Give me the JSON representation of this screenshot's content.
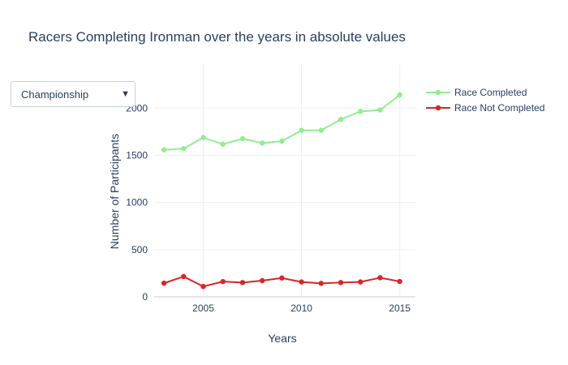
{
  "dropdown": {
    "selected": "Championship",
    "arrow_icon": "caret-down-icon"
  },
  "chart_data": {
    "type": "line",
    "title": "Racers Completing Ironman over the years in absolute values",
    "xlabel": "Years",
    "ylabel": "Number of Participants",
    "x": [
      2003,
      2004,
      2005,
      2006,
      2007,
      2008,
      2009,
      2010,
      2011,
      2012,
      2013,
      2014,
      2015
    ],
    "xlim": [
      2002.5,
      2015.8
    ],
    "ylim": [
      0,
      2200
    ],
    "x_ticks": [
      2005,
      2010,
      2015
    ],
    "y_ticks": [
      0,
      500,
      1000,
      1500,
      2000
    ],
    "grid": true,
    "legend_position": "top-right",
    "series": [
      {
        "name": "Race Completed",
        "color": "#90ee90",
        "values": [
          1558,
          1572,
          1688,
          1618,
          1677,
          1630,
          1650,
          1765,
          1765,
          1880,
          1965,
          1980,
          2140
        ]
      },
      {
        "name": "Race Not Completed",
        "color": "#d62728",
        "values": [
          145,
          215,
          110,
          162,
          152,
          172,
          200,
          158,
          143,
          152,
          158,
          203,
          163
        ]
      }
    ]
  }
}
